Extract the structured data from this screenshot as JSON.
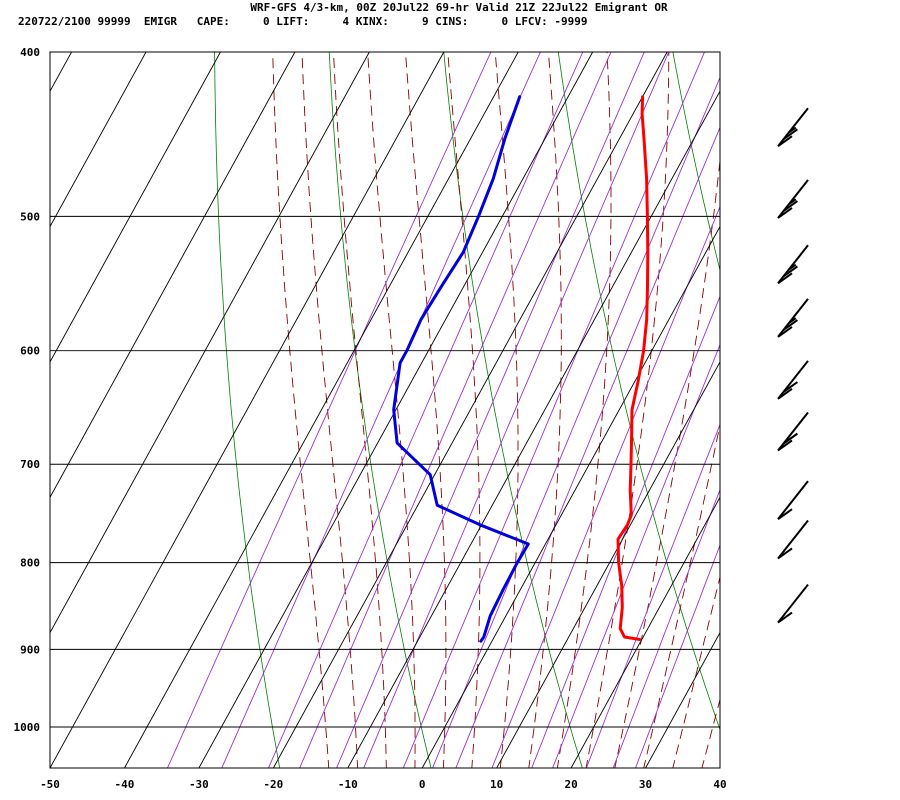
{
  "header": {
    "title": "WRF-GFS 4/3-km, 00Z 20Jul22 69-hr Valid 21Z 22Jul22 Emigrant OR",
    "params": "220722/2100 99999  EMIGR   CAPE:     0 LIFT:     4 KINX:     9 CINS:     0 LFCV: -9999"
  },
  "colors": {
    "temperature": "#ff0000",
    "dewpoint": "#0000dd",
    "dry_adiabat": "#008000",
    "moist_adiabat": "#8b0000",
    "mixing_ratio": "#9933cc",
    "grid": "#000000",
    "wind_barb": "#000000"
  },
  "chart_data": {
    "type": "line",
    "title": "",
    "xlabel": "",
    "ylabel": "",
    "x_axis": {
      "ticks": [
        -50,
        -40,
        -30,
        -20,
        -10,
        0,
        10,
        20,
        30,
        40
      ],
      "range": [
        -50,
        40
      ]
    },
    "y_axis": {
      "ticks": [
        400,
        500,
        600,
        700,
        800,
        900,
        1000
      ],
      "range": [
        400,
        1050
      ],
      "scale": "log-pressure"
    },
    "grid": true,
    "series": [
      {
        "key": "temperature",
        "points": [
          [
            425,
            -20.0
          ],
          [
            435,
            -18.8
          ],
          [
            450,
            -16.7
          ],
          [
            475,
            -13.4
          ],
          [
            500,
            -10.5
          ],
          [
            525,
            -7.8
          ],
          [
            550,
            -5.3
          ],
          [
            575,
            -3.0
          ],
          [
            600,
            -1.1
          ],
          [
            625,
            0.4
          ],
          [
            650,
            1.7
          ],
          [
            675,
            3.7
          ],
          [
            700,
            5.6
          ],
          [
            725,
            7.4
          ],
          [
            750,
            9.4
          ],
          [
            760,
            9.6
          ],
          [
            775,
            9.4
          ],
          [
            800,
            11.2
          ],
          [
            825,
            13.3
          ],
          [
            850,
            15.0
          ],
          [
            875,
            16.3
          ],
          [
            885,
            17.5
          ],
          [
            888,
            19.7
          ]
        ]
      },
      {
        "key": "dewpoint",
        "points": [
          [
            425,
            -36.5
          ],
          [
            450,
            -35.4
          ],
          [
            475,
            -34.0
          ],
          [
            500,
            -33.2
          ],
          [
            525,
            -32.6
          ],
          [
            550,
            -33.0
          ],
          [
            575,
            -33.3
          ],
          [
            600,
            -32.9
          ],
          [
            610,
            -32.9
          ],
          [
            650,
            -30.3
          ],
          [
            680,
            -27.4
          ],
          [
            710,
            -20.6
          ],
          [
            740,
            -17.4
          ],
          [
            760,
            -10.2
          ],
          [
            780,
            -2.3
          ],
          [
            800,
            -2.4
          ],
          [
            830,
            -2.3
          ],
          [
            860,
            -2.1
          ],
          [
            885,
            -1.4
          ],
          [
            890,
            -1.5
          ]
        ]
      }
    ],
    "wind_barbs": [
      {
        "pressure": 440,
        "speed_kt": 25
      },
      {
        "pressure": 485,
        "speed_kt": 25
      },
      {
        "pressure": 530,
        "speed_kt": 25
      },
      {
        "pressure": 570,
        "speed_kt": 25
      },
      {
        "pressure": 620,
        "speed_kt": 20
      },
      {
        "pressure": 665,
        "speed_kt": 20
      },
      {
        "pressure": 730,
        "speed_kt": 10
      },
      {
        "pressure": 770,
        "speed_kt": 10
      },
      {
        "pressure": 840,
        "speed_kt": 10
      }
    ]
  }
}
